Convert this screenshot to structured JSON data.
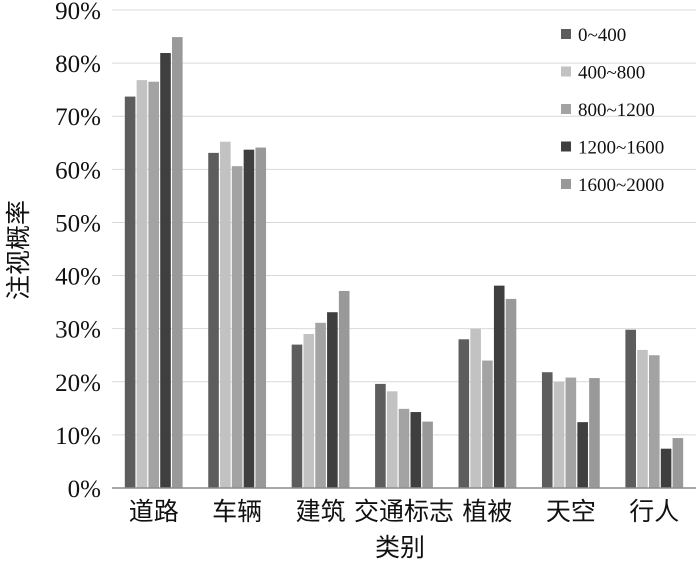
{
  "chart_data": {
    "type": "bar",
    "xlabel": "类别",
    "ylabel": "注视概率",
    "ylim": [
      0,
      0.9
    ],
    "y_ticks": [
      "0%",
      "10%",
      "20%",
      "30%",
      "40%",
      "50%",
      "60%",
      "70%",
      "80%",
      "90%"
    ],
    "grid": true,
    "legend_position": "top-right",
    "categories": [
      "道路",
      "车辆",
      "建筑",
      "交通标志",
      "植被",
      "天空",
      "行人"
    ],
    "series": [
      {
        "name": "0~400",
        "color": "#5d5d5d",
        "values": [
          0.737,
          0.631,
          0.27,
          0.196,
          0.28,
          0.218,
          0.298
        ]
      },
      {
        "name": "400~800",
        "color": "#c2c2c2",
        "values": [
          0.768,
          0.652,
          0.29,
          0.182,
          0.3,
          0.2,
          0.26
        ]
      },
      {
        "name": "800~1200",
        "color": "#a3a3a3",
        "values": [
          0.765,
          0.606,
          0.311,
          0.149,
          0.24,
          0.208,
          0.25
        ]
      },
      {
        "name": "1200~1600",
        "color": "#3f3f3f",
        "values": [
          0.819,
          0.637,
          0.331,
          0.143,
          0.381,
          0.124,
          0.074
        ]
      },
      {
        "name": "1600~2000",
        "color": "#999999",
        "values": [
          0.849,
          0.641,
          0.371,
          0.125,
          0.356,
          0.207,
          0.094
        ]
      }
    ]
  }
}
